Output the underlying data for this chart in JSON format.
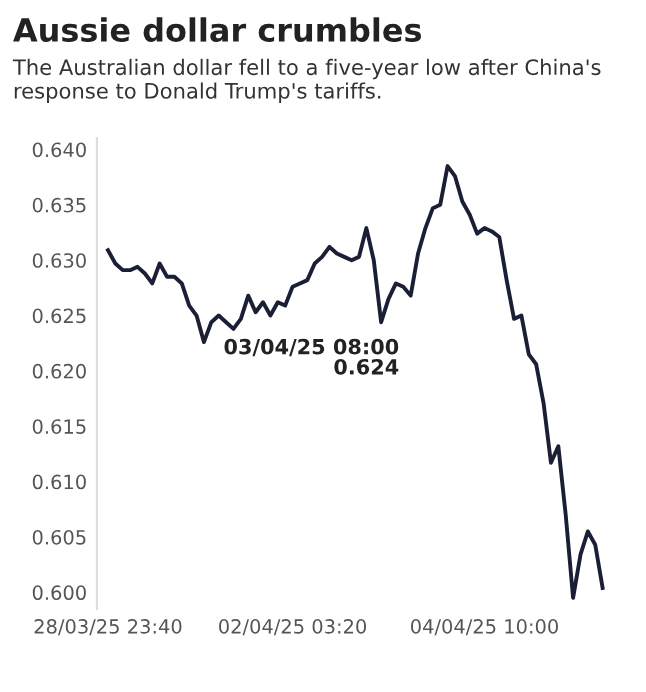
{
  "chart_data": {
    "type": "line",
    "title": "Aussie dollar crumbles",
    "subtitle": "The Australian dollar fell to a five-year low after China's response to Donald Trump's tariffs.",
    "series": [
      {
        "color": "#1a1f36",
        "values": [
          0.6309,
          0.6297,
          0.6291,
          0.6291,
          0.6294,
          0.6288,
          0.6279,
          0.6297,
          0.6285,
          0.6285,
          0.6279,
          0.6259,
          0.625,
          0.6226,
          0.6244,
          0.625,
          0.6244,
          0.6238,
          0.6247,
          0.6268,
          0.6253,
          0.6262,
          0.625,
          0.6262,
          0.6259,
          0.6276,
          0.6279,
          0.6282,
          0.6297,
          0.6303,
          0.6312,
          0.6306,
          0.6303,
          0.63,
          0.6303,
          0.6329,
          0.63,
          0.6244,
          0.6265,
          0.6279,
          0.6276,
          0.6268,
          0.6306,
          0.6329,
          0.6347,
          0.635,
          0.6385,
          0.6376,
          0.6353,
          0.6341,
          0.6324,
          0.6329,
          0.6326,
          0.6321,
          0.6282,
          0.6247,
          0.625,
          0.6215,
          0.6206,
          0.6171,
          0.6117,
          0.6132,
          0.607,
          0.5995,
          0.6034,
          0.6055,
          0.6043,
          0.6004
        ]
      }
    ],
    "categories": [
      "28/03/25 23:40",
      null,
      null,
      null,
      null,
      null,
      null,
      null,
      null,
      null,
      null,
      null,
      null,
      null,
      null,
      null,
      null,
      null,
      null,
      null,
      null,
      null,
      null,
      null,
      null,
      "02/04/25 03:20",
      null,
      null,
      null,
      null,
      null,
      null,
      null,
      null,
      null,
      null,
      null,
      null,
      null,
      null,
      null,
      null,
      null,
      null,
      null,
      null,
      null,
      null,
      null,
      null,
      null,
      "04/04/25 10:00",
      null,
      null,
      null,
      null,
      null,
      null,
      null,
      null,
      null,
      null,
      null,
      null,
      null,
      null,
      null,
      null
    ],
    "ylim": [
      0.5985,
      0.641
    ],
    "yticks": [
      {
        "value": 0.6,
        "label": "0.600"
      },
      {
        "value": 0.605,
        "label": "0.605"
      },
      {
        "value": 0.61,
        "label": "0.610"
      },
      {
        "value": 0.615,
        "label": "0.615"
      },
      {
        "value": 0.62,
        "label": "0.620"
      },
      {
        "value": 0.625,
        "label": "0.625"
      },
      {
        "value": 0.63,
        "label": "0.630"
      },
      {
        "value": 0.635,
        "label": "0.635"
      },
      {
        "value": 0.64,
        "label": "0.640"
      }
    ],
    "annotations": [
      "03/04/25 08:00\n0.624"
    ],
    "grid": false,
    "legend": false,
    "marker": "none",
    "line_style": "solid"
  }
}
